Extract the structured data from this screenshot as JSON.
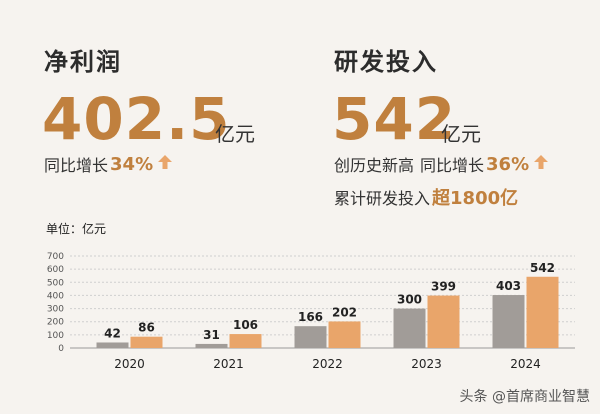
{
  "net_profit": {
    "title": "净利润",
    "value": "402.5",
    "unit": "亿元",
    "growth_label": "同比增长",
    "growth_pct": "34%"
  },
  "rd": {
    "title": "研发投入",
    "value": "542",
    "unit": "亿元",
    "record_label": "创历史新高",
    "growth_label": "同比增长",
    "growth_pct": "36%",
    "cumulative_label": "累计研发投入",
    "cumulative_value": "超1800亿"
  },
  "chart_unit": "单位：亿元",
  "watermark": "头条 @首席商业智慧",
  "colors": {
    "accent": "#c0803e",
    "gray_bar": "#a19c98",
    "orange_bar": "#e9a56a"
  },
  "chart_data": {
    "type": "bar",
    "categories": [
      "2020",
      "2021",
      "2022",
      "2023",
      "2024"
    ],
    "series": [
      {
        "values": [
          42,
          31,
          166,
          300,
          403
        ]
      },
      {
        "values": [
          86,
          106,
          202,
          399,
          542
        ]
      }
    ],
    "ylim": [
      0,
      700
    ],
    "yticks": [
      0,
      100,
      200,
      300,
      400,
      500,
      600,
      700
    ],
    "grid": true
  }
}
